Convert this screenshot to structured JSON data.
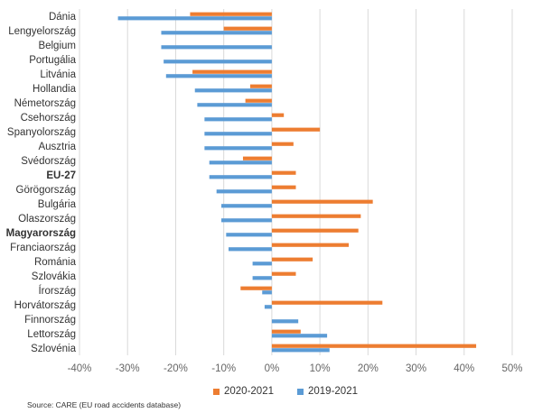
{
  "chart_data": {
    "type": "bar",
    "orientation": "horizontal",
    "categories": [
      "Dánia",
      "Lengyelország",
      "Belgium",
      "Portugália",
      "Litvánia",
      "Hollandia",
      "Németország",
      "Csehország",
      "Spanyolország",
      "Ausztria",
      "Svédország",
      "EU-27",
      "Görögország",
      "Bulgária",
      "Olaszország",
      "Magyarország",
      "Franciaország",
      "Románia",
      "Szlovákia",
      "Írország",
      "Horvátország",
      "Finnország",
      "Lettország",
      "Szlovénia"
    ],
    "bold_categories": [
      "EU-27",
      "Magyarország"
    ],
    "series": [
      {
        "name": "2020-2021",
        "color": "#ED7D31",
        "values": [
          -17,
          -10,
          0,
          0,
          -16.5,
          -4.5,
          -5.5,
          2.5,
          10,
          4.5,
          -6,
          5,
          5,
          21,
          18.5,
          18,
          16,
          8.5,
          5,
          -6.5,
          23,
          0,
          6,
          42.5
        ]
      },
      {
        "name": "2019-2021",
        "color": "#5B9BD5",
        "values": [
          -32,
          -23,
          -23,
          -22.5,
          -22,
          -16,
          -15.5,
          -14,
          -14,
          -14,
          -13,
          -13,
          -11.5,
          -10.5,
          -10.5,
          -9.5,
          -9,
          -4,
          -4,
          -2,
          -1.5,
          5.5,
          11.5,
          12
        ]
      }
    ],
    "xlim": [
      -40,
      50
    ],
    "xticks": [
      "-40%",
      "-30%",
      "-20%",
      "-10%",
      "0%",
      "10%",
      "20%",
      "30%",
      "40%",
      "50%"
    ],
    "grid": true,
    "legend_position": "bottom"
  },
  "source": "Source: CARE (EU road accidents database)"
}
